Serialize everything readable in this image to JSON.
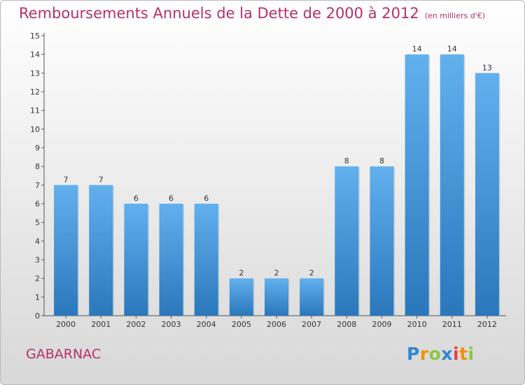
{
  "chart_data": {
    "type": "bar",
    "title": "Remboursements Annuels de la Dette de 2000 à 2012",
    "subtitle": "(en milliers d'€)",
    "categories": [
      "2000",
      "2001",
      "2002",
      "2003",
      "2004",
      "2005",
      "2006",
      "2007",
      "2008",
      "2009",
      "2010",
      "2011",
      "2012"
    ],
    "values": [
      7,
      7,
      6,
      6,
      6,
      2,
      2,
      2,
      8,
      8,
      14,
      14,
      13
    ],
    "ylim": [
      0,
      15
    ],
    "yticks": [
      0,
      1,
      2,
      3,
      4,
      5,
      6,
      7,
      8,
      9,
      10,
      11,
      12,
      13,
      14,
      15
    ],
    "grid": false,
    "bar_color": "#4f9fe0"
  },
  "commune": "GABARNAC",
  "logo": {
    "letters": [
      "P",
      "r",
      "o",
      "x",
      "i",
      "t",
      "i"
    ],
    "colors": [
      "#2f86d2",
      "#f29100",
      "#8cc63f",
      "#2f86d2",
      "#e8413c",
      "#f29100",
      "#8cc63f"
    ]
  }
}
